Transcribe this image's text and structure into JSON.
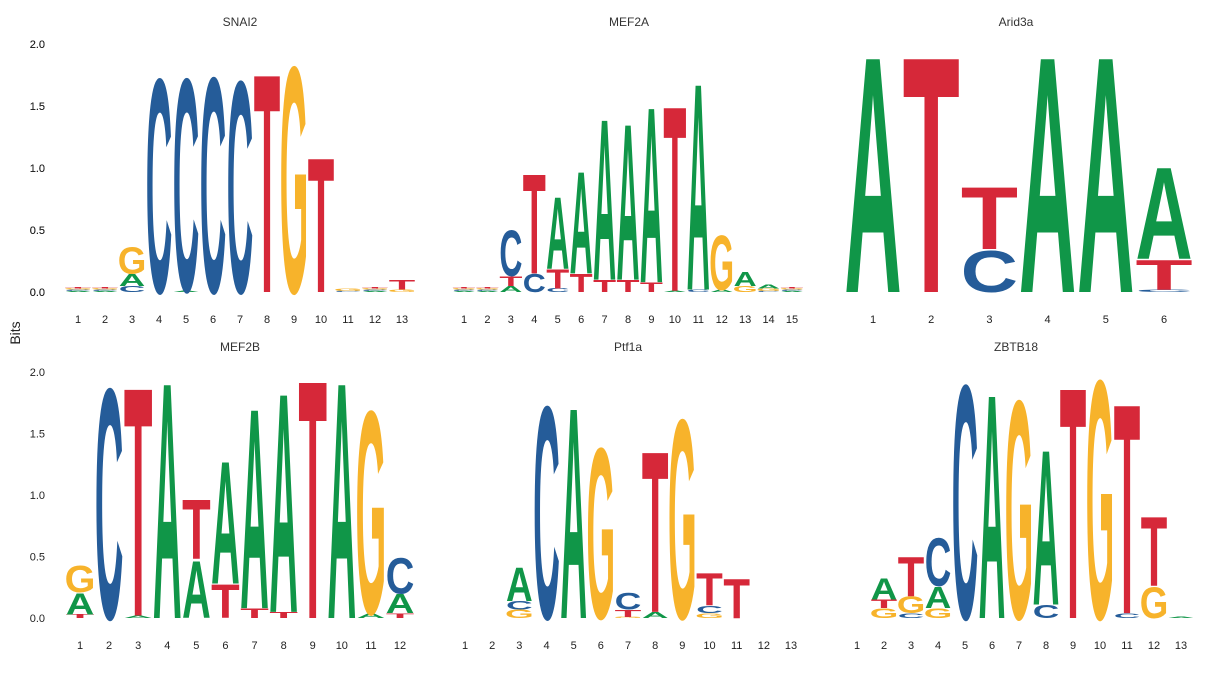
{
  "figure": {
    "ylabel": "Bits"
  },
  "colors": {
    "A": "#109648",
    "C": "#255C99",
    "G": "#F7B32B",
    "T": "#D62839"
  },
  "chart_data": [
    {
      "type": "sequence-logo",
      "title": "SNAI2",
      "ylim": [
        0,
        2.1
      ],
      "yticks": [
        "0.0",
        "0.5",
        "1.0",
        "1.5",
        "2.0"
      ],
      "positions": [
        "1",
        "2",
        "3",
        "4",
        "5",
        "6",
        "7",
        "8",
        "9",
        "10",
        "11",
        "12",
        "13"
      ],
      "letters": [
        [
          [
            "A",
            0.01
          ],
          [
            "C",
            0.01
          ],
          [
            "G",
            0.01
          ],
          [
            "T",
            0.01
          ]
        ],
        [
          [
            "A",
            0.01
          ],
          [
            "C",
            0.01
          ],
          [
            "G",
            0.01
          ],
          [
            "T",
            0.01
          ]
        ],
        [
          [
            "C",
            0.05
          ],
          [
            "A",
            0.1
          ],
          [
            "G",
            0.22
          ]
        ],
        [
          [
            "C",
            1.78
          ]
        ],
        [
          [
            "A",
            0.01
          ],
          [
            "C",
            1.77
          ]
        ],
        [
          [
            "C",
            1.79
          ]
        ],
        [
          [
            "C",
            1.76
          ]
        ],
        [
          [
            "T",
            1.82
          ]
        ],
        [
          [
            "G",
            1.88
          ]
        ],
        [
          [
            "T",
            1.12
          ]
        ],
        [
          [
            "C",
            0.01
          ],
          [
            "G",
            0.02
          ]
        ],
        [
          [
            "A",
            0.01
          ],
          [
            "C",
            0.01
          ],
          [
            "G",
            0.01
          ],
          [
            "T",
            0.01
          ]
        ],
        [
          [
            "G",
            0.02
          ],
          [
            "T",
            0.08
          ]
        ]
      ]
    },
    {
      "type": "sequence-logo",
      "title": "MEF2A",
      "ylim": [
        0,
        2.1
      ],
      "yticks": [
        "0.0",
        "0.5",
        "1.0",
        "1.5",
        "2.0"
      ],
      "positions": [
        "1",
        "2",
        "3",
        "4",
        "5",
        "6",
        "7",
        "8",
        "9",
        "10",
        "11",
        "12",
        "13",
        "14",
        "15"
      ],
      "letters": [
        [
          [
            "A",
            0.01
          ],
          [
            "C",
            0.01
          ],
          [
            "G",
            0.01
          ],
          [
            "T",
            0.01
          ]
        ],
        [
          [
            "A",
            0.01
          ],
          [
            "C",
            0.01
          ],
          [
            "G",
            0.01
          ],
          [
            "T",
            0.01
          ]
        ],
        [
          [
            "A",
            0.05
          ],
          [
            "T",
            0.08
          ],
          [
            "C",
            0.38
          ]
        ],
        [
          [
            "C",
            0.15
          ],
          [
            "T",
            0.83
          ]
        ],
        [
          [
            "C",
            0.03
          ],
          [
            "T",
            0.16
          ],
          [
            "A",
            0.6
          ]
        ],
        [
          [
            "T",
            0.15
          ],
          [
            "A",
            0.85
          ]
        ],
        [
          [
            "T",
            0.1
          ],
          [
            "A",
            1.34
          ]
        ],
        [
          [
            "T",
            0.1
          ],
          [
            "A",
            1.3
          ]
        ],
        [
          [
            "T",
            0.08
          ],
          [
            "A",
            1.46
          ]
        ],
        [
          [
            "A",
            0.01
          ],
          [
            "T",
            1.54
          ]
        ],
        [
          [
            "C",
            0.02
          ],
          [
            "A",
            1.72
          ]
        ],
        [
          [
            "A",
            0.02
          ],
          [
            "G",
            0.45
          ]
        ],
        [
          [
            "G",
            0.05
          ],
          [
            "A",
            0.12
          ]
        ],
        [
          [
            "C",
            0.01
          ],
          [
            "G",
            0.02
          ],
          [
            "A",
            0.03
          ]
        ],
        [
          [
            "A",
            0.01
          ],
          [
            "C",
            0.01
          ],
          [
            "G",
            0.01
          ],
          [
            "T",
            0.01
          ]
        ]
      ]
    },
    {
      "type": "sequence-logo",
      "title": "Arid3a",
      "ylim": [
        0,
        2.0
      ],
      "yticks": [],
      "positions": [
        "1",
        "2",
        "3",
        "4",
        "5",
        "6"
      ],
      "letters": [
        [
          [
            "A",
            1.98
          ]
        ],
        [
          [
            "T",
            1.98
          ]
        ],
        [
          [
            "C",
            0.35
          ],
          [
            "T",
            0.52
          ]
        ],
        [
          [
            "A",
            1.98
          ]
        ],
        [
          [
            "A",
            1.98
          ]
        ],
        [
          [
            "C",
            0.02
          ],
          [
            "T",
            0.25
          ],
          [
            "A",
            0.77
          ]
        ]
      ]
    },
    {
      "type": "sequence-logo",
      "title": "MEF2B",
      "ylim": [
        0,
        2.1
      ],
      "yticks": [
        "0.0",
        "0.5",
        "1.0",
        "1.5",
        "2.0"
      ],
      "positions": [
        "1",
        "2",
        "3",
        "4",
        "5",
        "6",
        "7",
        "8",
        "9",
        "10",
        "11",
        "12"
      ],
      "letters": [
        [
          [
            "T",
            0.03
          ],
          [
            "A",
            0.18
          ],
          [
            "G",
            0.22
          ]
        ],
        [
          [
            "C",
            1.93
          ]
        ],
        [
          [
            "A",
            0.02
          ],
          [
            "T",
            1.92
          ]
        ],
        [
          [
            "A",
            1.98
          ]
        ],
        [
          [
            "A",
            0.48
          ],
          [
            "T",
            0.5
          ]
        ],
        [
          [
            "T",
            0.28
          ],
          [
            "A",
            1.03
          ]
        ],
        [
          [
            "T",
            0.08
          ],
          [
            "A",
            1.68
          ]
        ],
        [
          [
            "T",
            0.05
          ],
          [
            "A",
            1.84
          ]
        ],
        [
          [
            "T",
            2.0
          ]
        ],
        [
          [
            "A",
            1.98
          ]
        ],
        [
          [
            "A",
            0.04
          ],
          [
            "G",
            1.7
          ]
        ],
        [
          [
            "T",
            0.04
          ],
          [
            "A",
            0.16
          ],
          [
            "C",
            0.3
          ]
        ]
      ]
    },
    {
      "type": "sequence-logo",
      "title": "Ptf1a",
      "ylim": [
        0,
        2.1
      ],
      "yticks": [],
      "positions": [
        "1",
        "2",
        "3",
        "4",
        "5",
        "6",
        "7",
        "8",
        "9",
        "10",
        "11",
        "12",
        "13"
      ],
      "letters": [
        [],
        [],
        [
          [
            "G",
            0.07
          ],
          [
            "C",
            0.07
          ],
          [
            "A",
            0.28
          ]
        ],
        [
          [
            "C",
            1.78
          ]
        ],
        [
          [
            "A",
            1.77
          ]
        ],
        [
          [
            "G",
            1.43
          ]
        ],
        [
          [
            "G",
            0.01
          ],
          [
            "T",
            0.06
          ],
          [
            "C",
            0.14
          ]
        ],
        [
          [
            "A",
            0.05
          ],
          [
            "T",
            1.35
          ]
        ],
        [
          [
            "G",
            1.67
          ]
        ],
        [
          [
            "G",
            0.04
          ],
          [
            "C",
            0.06
          ],
          [
            "T",
            0.27
          ]
        ],
        [
          [
            "T",
            0.33
          ]
        ],
        [],
        []
      ]
    },
    {
      "type": "sequence-logo",
      "title": "ZBTB18",
      "ylim": [
        0,
        2.1
      ],
      "yticks": [],
      "positions": [
        "1",
        "2",
        "3",
        "4",
        "5",
        "6",
        "7",
        "8",
        "9",
        "10",
        "11",
        "12",
        "13"
      ],
      "letters": [
        [],
        [
          [
            "G",
            0.08
          ],
          [
            "T",
            0.07
          ],
          [
            "A",
            0.18
          ]
        ],
        [
          [
            "C",
            0.04
          ],
          [
            "G",
            0.14
          ],
          [
            "T",
            0.33
          ]
        ],
        [
          [
            "G",
            0.08
          ],
          [
            "A",
            0.18
          ],
          [
            "C",
            0.4
          ]
        ],
        [
          [
            "C",
            1.96
          ]
        ],
        [
          [
            "A",
            1.88
          ]
        ],
        [
          [
            "G",
            1.83
          ]
        ],
        [
          [
            "C",
            0.11
          ],
          [
            "A",
            1.3
          ]
        ],
        [
          [
            "T",
            1.94
          ]
        ],
        [
          [
            "G",
            2.0
          ]
        ],
        [
          [
            "C",
            0.04
          ],
          [
            "T",
            1.76
          ]
        ],
        [
          [
            "G",
            0.26
          ],
          [
            "T",
            0.58
          ]
        ],
        [
          [
            "A",
            0.01
          ]
        ]
      ]
    }
  ]
}
